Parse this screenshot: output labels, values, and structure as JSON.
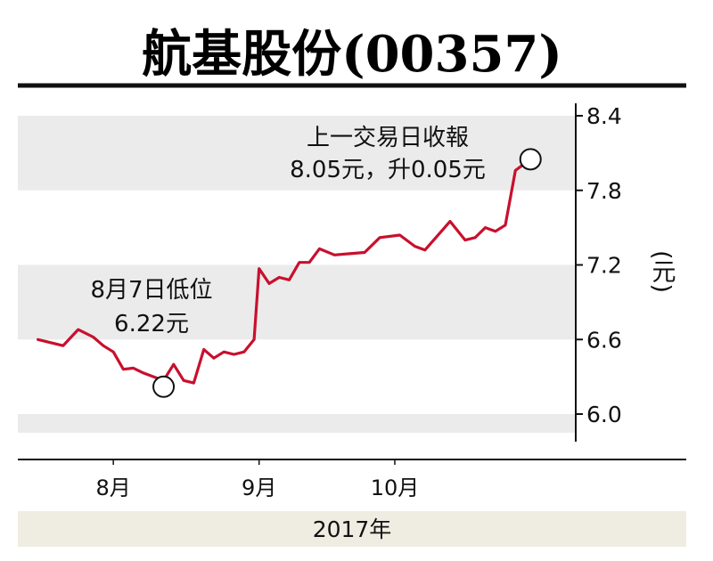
{
  "chart_data": {
    "type": "line",
    "title": "航基股份(00357)",
    "ylabel": "(元)",
    "xlabel": "2017年",
    "ylim": [
      5.85,
      8.5
    ],
    "yticks": [
      {
        "value": 8.4,
        "label": "8.4"
      },
      {
        "value": 7.8,
        "label": "7.8"
      },
      {
        "value": 7.2,
        "label": "7.2"
      },
      {
        "value": 6.6,
        "label": "6.6"
      },
      {
        "value": 6.0,
        "label": "6.0"
      }
    ],
    "month_labels": [
      {
        "day": 13,
        "label": "8月"
      },
      {
        "day": 42,
        "label": "9月"
      },
      {
        "day": 69,
        "label": "10月"
      }
    ],
    "x_range": [
      -6,
      105
    ],
    "series": [
      {
        "color": "#c8102e",
        "points": [
          [
            -2,
            6.6
          ],
          [
            1,
            6.57
          ],
          [
            3,
            6.55
          ],
          [
            6,
            6.68
          ],
          [
            9,
            6.62
          ],
          [
            11,
            6.55
          ],
          [
            13,
            6.5
          ],
          [
            15,
            6.36
          ],
          [
            17,
            6.37
          ],
          [
            19,
            6.33
          ],
          [
            21,
            6.3
          ],
          [
            23,
            6.27
          ],
          [
            25,
            6.4
          ],
          [
            27,
            6.27
          ],
          [
            29,
            6.25
          ],
          [
            31,
            6.52
          ],
          [
            33,
            6.45
          ],
          [
            35,
            6.5
          ],
          [
            37,
            6.48
          ],
          [
            39,
            6.5
          ],
          [
            41,
            6.6
          ],
          [
            42,
            7.17
          ],
          [
            44,
            7.05
          ],
          [
            46,
            7.1
          ],
          [
            48,
            7.08
          ],
          [
            50,
            7.22
          ],
          [
            52,
            7.22
          ],
          [
            54,
            7.33
          ],
          [
            57,
            7.28
          ],
          [
            60,
            7.29
          ],
          [
            63,
            7.3
          ],
          [
            66,
            7.42
          ],
          [
            70,
            7.44
          ],
          [
            73,
            7.35
          ],
          [
            75,
            7.32
          ],
          [
            80,
            7.55
          ],
          [
            83,
            7.4
          ],
          [
            85,
            7.42
          ],
          [
            87,
            7.5
          ],
          [
            89,
            7.47
          ],
          [
            91,
            7.52
          ],
          [
            93,
            7.96
          ],
          [
            96,
            8.05
          ]
        ]
      }
    ],
    "markers": [
      {
        "day": 23,
        "value": 6.22
      },
      {
        "day": 96,
        "value": 8.05
      }
    ],
    "annotations": [
      {
        "lines": [
          "8月7日低位",
          "6.22元"
        ]
      },
      {
        "lines": [
          "上一交易日收報",
          "8.05元，升0.05元"
        ]
      }
    ],
    "grid": "alternating horizontal bands"
  },
  "colors": {
    "line": "#c8102e",
    "band": "#ebebeb",
    "year_band": "#efede2",
    "axis": "#111111"
  }
}
